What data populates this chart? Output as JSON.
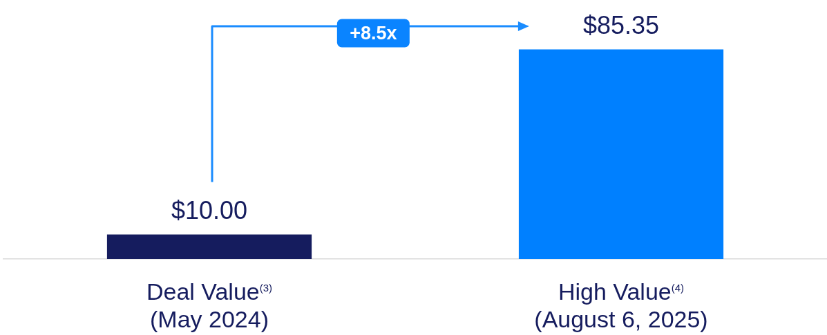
{
  "chart_data": {
    "type": "bar",
    "categories": [
      "Deal Value$^{(3)}$\n(May 2024)",
      "High Value$^{(4)}$\n(August 6, 2025)"
    ],
    "values": [
      10.0,
      85.35
    ],
    "colors": [
      "#151c5e",
      "#0080ff"
    ],
    "value_labels": [
      "$10.00",
      "$85.35"
    ],
    "tick_labels": "x",
    "grid": false,
    "legend": false,
    "annotations": [
      "+8.5x"
    ]
  }
}
